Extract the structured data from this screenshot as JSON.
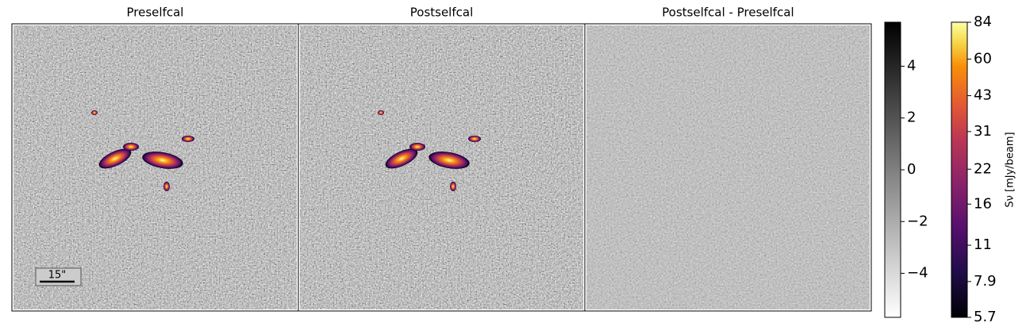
{
  "panels": [
    {
      "title": "Preselfcal"
    },
    {
      "title": "Postselfcal"
    },
    {
      "title": "Postselfcal - Preselfcal"
    }
  ],
  "scale_bar": "15\"",
  "colorbars": [
    {
      "cmap": "gray_r",
      "lim": [
        -5.7,
        5.7
      ],
      "ticks": [
        {
          "value": -4,
          "label": "−4"
        },
        {
          "value": -2,
          "label": "−2"
        },
        0,
        2,
        4
      ]
    },
    {
      "cmap": "inferno",
      "log": true,
      "lim": [
        5.7,
        84
      ],
      "ticks": [
        5.7,
        7.9,
        11,
        16,
        22,
        31,
        43,
        60,
        84
      ],
      "label": "Sν [mJy/beam]"
    }
  ]
}
